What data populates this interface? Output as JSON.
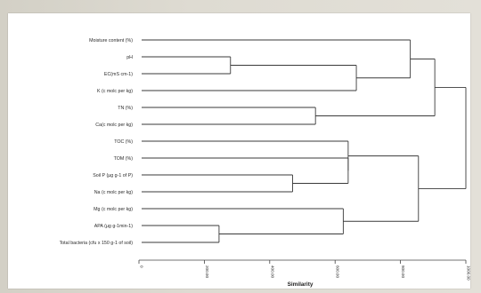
{
  "figure": {
    "leaves": [
      "Moisture content (%)",
      "pH",
      "EC(mS cm-1)",
      "K (c molc per kg)",
      "TN (%)",
      "Ca(c molc per kg)",
      "TOC (%)",
      "TOM (%)",
      "Soil P (µg g-1 of P)",
      "Na (c molc per kg)",
      "Mg (c molc per kg)",
      "APA (µg g-1min-1)",
      "Total bacteria (cfu x 150 g-1 of soil)"
    ],
    "axis": {
      "title": "Similarity",
      "range": [
        0,
        1000
      ],
      "ticks": [
        {
          "value": 0,
          "label": "0"
        },
        {
          "value": 200,
          "label": "200.00"
        },
        {
          "value": 400,
          "label": "400.00"
        },
        {
          "value": 600,
          "label": "600.00"
        },
        {
          "value": 800,
          "label": "800.00"
        },
        {
          "value": 1000,
          "label": "1000.00"
        }
      ]
    },
    "merges": [
      {
        "id": "c1",
        "left": 1,
        "right": 2,
        "height": 280
      },
      {
        "id": "c2",
        "left": "c1",
        "right": 3,
        "height": 665
      },
      {
        "id": "c3",
        "left": 4,
        "right": 5,
        "height": 540
      },
      {
        "id": "c4",
        "left": 0,
        "right": "c2",
        "height": 830
      },
      {
        "id": "c5",
        "left": "c4",
        "right": "c3",
        "height": 905
      },
      {
        "id": "c6",
        "left": 8,
        "right": 9,
        "height": 470
      },
      {
        "id": "c7",
        "left": 7,
        "right": "c6",
        "height": 640
      },
      {
        "id": "c8",
        "left": 6,
        "right": "c7",
        "height": 640
      },
      {
        "id": "c9",
        "left": 11,
        "right": 12,
        "height": 245
      },
      {
        "id": "c10",
        "left": 10,
        "right": "c9",
        "height": 625
      },
      {
        "id": "c11",
        "left": "c8",
        "right": "c10",
        "height": 855
      },
      {
        "id": "c12",
        "left": "c5",
        "right": "c11",
        "height": 1000
      }
    ]
  }
}
